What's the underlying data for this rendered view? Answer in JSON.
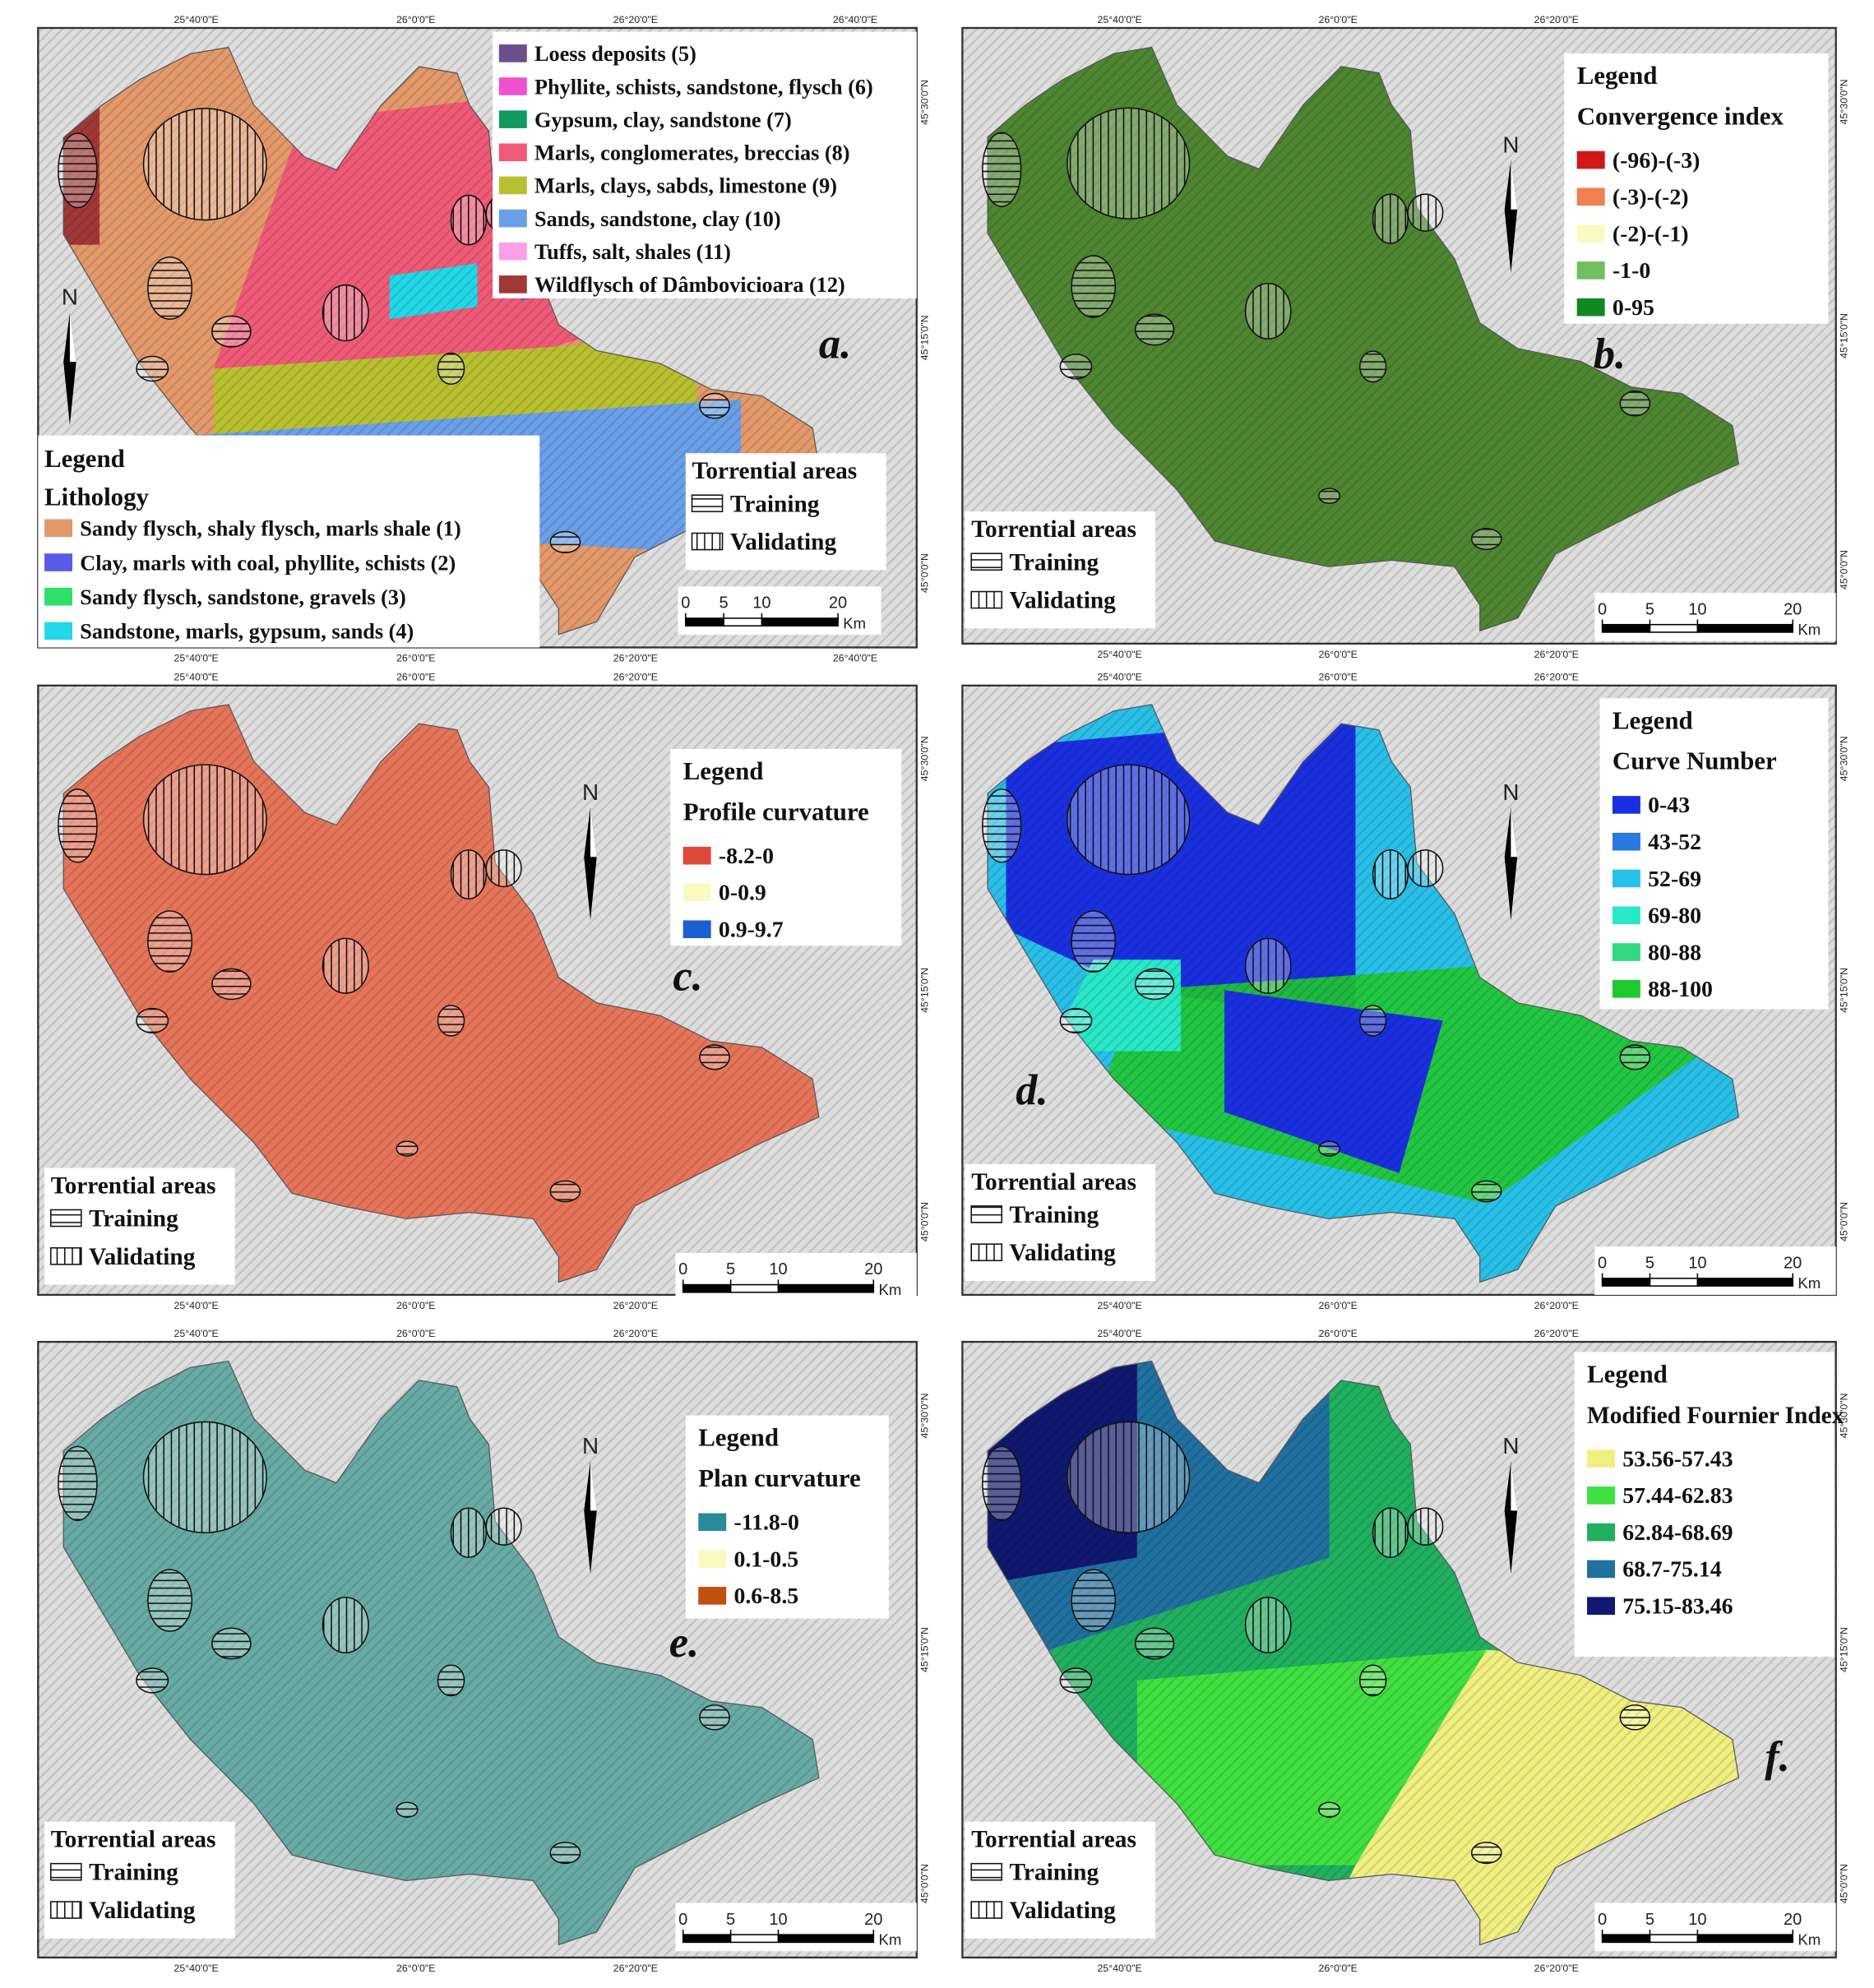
{
  "figure": {
    "panels": [
      {
        "label": "a.",
        "legend_title": "Legend",
        "legend_subtitle": "Lithology",
        "classes": [
          {
            "label": "Sandy flysch, shaly flysch, marls shale (1)",
            "color": "#e4996a"
          },
          {
            "label": "Clay, marls with coal, phyllite, schists (2)",
            "color": "#5a5ae8"
          },
          {
            "label": "Sandy flysch, sandstone, gravels (3)",
            "color": "#2ee06a"
          },
          {
            "label": "Sandstone, marls, gypsum, sands (4)",
            "color": "#22d8e8"
          },
          {
            "label": "Loess deposits (5)",
            "color": "#6a4f8c"
          },
          {
            "label": "Phyllite, schists, sandstone, flysch (6)",
            "color": "#f050d0"
          },
          {
            "label": "Gypsum, clay, sandstone (7)",
            "color": "#109a60"
          },
          {
            "label": "Marls, conglomerates, breccias (8)",
            "color": "#f05a78"
          },
          {
            "label": "Marls, clays, sabds, limestone (9)",
            "color": "#b8c030"
          },
          {
            "label": "Sands, sandstone, clay (10)",
            "color": "#6aa0e8"
          },
          {
            "label": "Tuffs, salt, shales (11)",
            "color": "#f8a0e8"
          },
          {
            "label": "Wildflysch of  Dâmbovicioara (12)",
            "color": "#a03838"
          }
        ]
      },
      {
        "label": "b.",
        "legend_title": "Legend",
        "legend_subtitle": "Convergence index",
        "classes": [
          {
            "label": "(-96)-(-3)",
            "color": "#d01818"
          },
          {
            "label": "(-3)-(-2)",
            "color": "#f08050"
          },
          {
            "label": "(-2)-(-1)",
            "color": "#fafac0"
          },
          {
            "label": "-1-0",
            "color": "#70c060"
          },
          {
            "label": "0-95",
            "color": "#108a20"
          }
        ]
      },
      {
        "label": "c.",
        "legend_title": "Legend",
        "legend_subtitle": "Profile curvature",
        "classes": [
          {
            "label": "-8.2-0",
            "color": "#e04838"
          },
          {
            "label": "0-0.9",
            "color": "#fafac0"
          },
          {
            "label": "0.9-9.7",
            "color": "#1a60d0"
          }
        ]
      },
      {
        "label": "d.",
        "legend_title": "Legend",
        "legend_subtitle": "Curve Number",
        "classes": [
          {
            "label": "0-43",
            "color": "#1a30e0"
          },
          {
            "label": "43-52",
            "color": "#2a78e0"
          },
          {
            "label": "52-69",
            "color": "#28c0e8"
          },
          {
            "label": "69-80",
            "color": "#28e8c8"
          },
          {
            "label": "80-88",
            "color": "#30d880"
          },
          {
            "label": "88-100",
            "color": "#20c830"
          }
        ]
      },
      {
        "label": "e.",
        "legend_title": "Legend",
        "legend_subtitle": "Plan curvature",
        "classes": [
          {
            "label": "-11.8-0",
            "color": "#2a8a9a"
          },
          {
            "label": "0.1-0.5",
            "color": "#fafac0"
          },
          {
            "label": "0.6-8.5",
            "color": "#c05010"
          }
        ]
      },
      {
        "label": "f.",
        "legend_title": "Legend",
        "legend_subtitle": "Modified Fournier Index",
        "classes": [
          {
            "label": "53.56-57.43",
            "color": "#f0f080"
          },
          {
            "label": "57.44-62.83",
            "color": "#40e040"
          },
          {
            "label": "62.84-68.69",
            "color": "#20b060"
          },
          {
            "label": "68.7-75.14",
            "color": "#2070a0"
          },
          {
            "label": "75.15-83.46",
            "color": "#101870"
          }
        ]
      }
    ],
    "torrential": {
      "title": "Torrential areas",
      "training": "Training",
      "validating": "Validating"
    },
    "scale": {
      "ticks": [
        0,
        5,
        10,
        20
      ],
      "unit": "Km"
    },
    "north": "N",
    "graticule": {
      "x": [
        "25°40'0\"E",
        "26°0'0\"E",
        "26°20'0\"E",
        "26°40'0\"E"
      ],
      "y": [
        "45°30'0\"N",
        "45°15'0\"N",
        "45°0'0\"N"
      ]
    }
  }
}
